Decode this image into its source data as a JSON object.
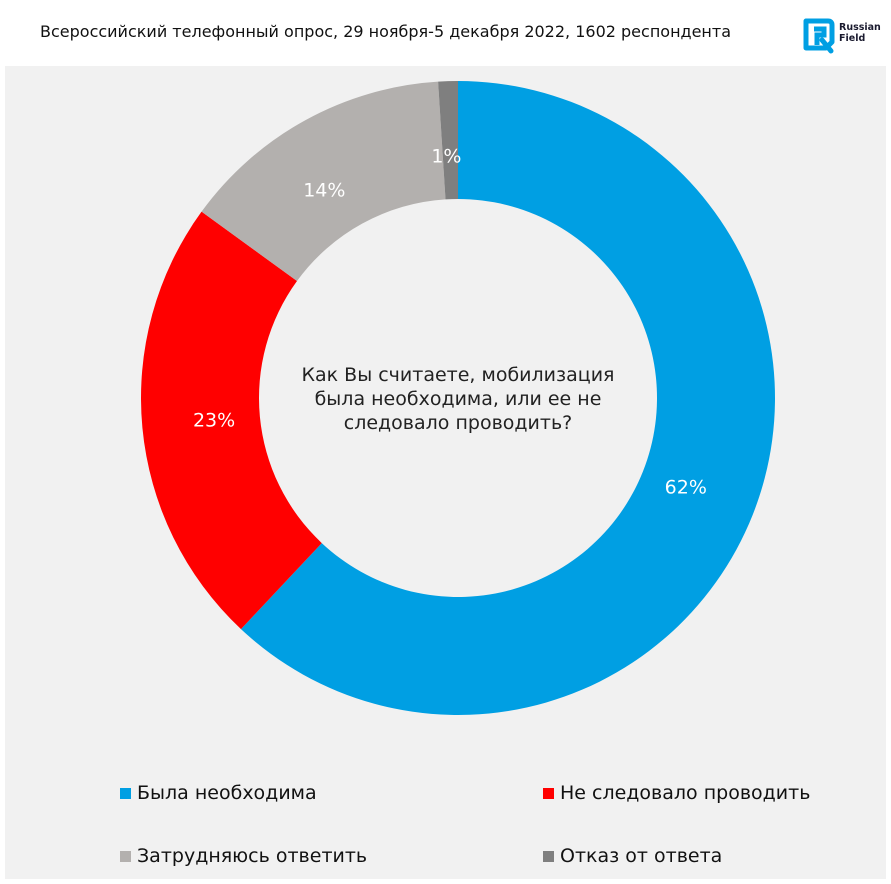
{
  "header": {
    "subtitle": "Всероссийский телефонный опрос, 29 ноября-5 декабря 2022, 1602 респондента",
    "logo_line1": "Russian",
    "logo_line2": "Field"
  },
  "question": "Как Вы считаете, мобилизация была необходима, или ее не следовало проводить?",
  "colors": {
    "accent": "#009fe3",
    "background": "#f1f1f1"
  },
  "chart_data": {
    "type": "pie",
    "variant": "donut",
    "title": "Как Вы считаете, мобилизация была необходима, или ее не следовало проводить?",
    "categories": [
      "Была необходима",
      "Не следовало проводить",
      "Затрудняюсь ответить",
      "Отказ от ответа"
    ],
    "values": [
      62,
      23,
      14,
      1
    ],
    "data_labels": [
      "62%",
      "23%",
      "14%",
      "1%"
    ],
    "colors": [
      "#009fe3",
      "#ff0000",
      "#b3b0ae",
      "#7f7f7f"
    ],
    "legend_position": "bottom"
  },
  "legend": {
    "items": [
      {
        "label": "Была необходима",
        "color": "#009fe3"
      },
      {
        "label": "Не следовало проводить",
        "color": "#ff0000"
      },
      {
        "label": "Затрудняюсь ответить",
        "color": "#b3b0ae"
      },
      {
        "label": "Отказ от ответа",
        "color": "#7f7f7f"
      }
    ]
  }
}
